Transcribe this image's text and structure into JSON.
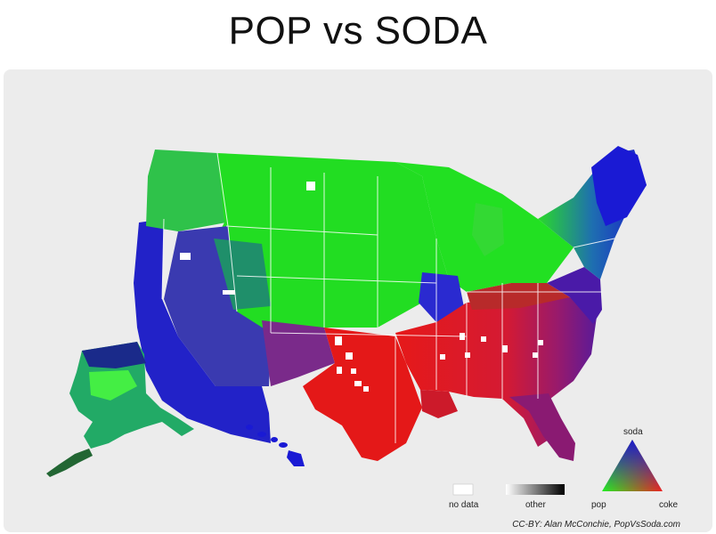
{
  "title": "POP vs SODA",
  "legend": {
    "no_data": "no data",
    "other": "other",
    "pop": "pop",
    "coke": "coke",
    "soda": "soda"
  },
  "credit": "CC-BY: Alan McConchie, PopVsSoda.com",
  "colors": {
    "pop": "#19e619",
    "soda": "#1a1acc",
    "coke": "#e61919",
    "no_data": "#ffffff",
    "background": "#ececec"
  }
}
